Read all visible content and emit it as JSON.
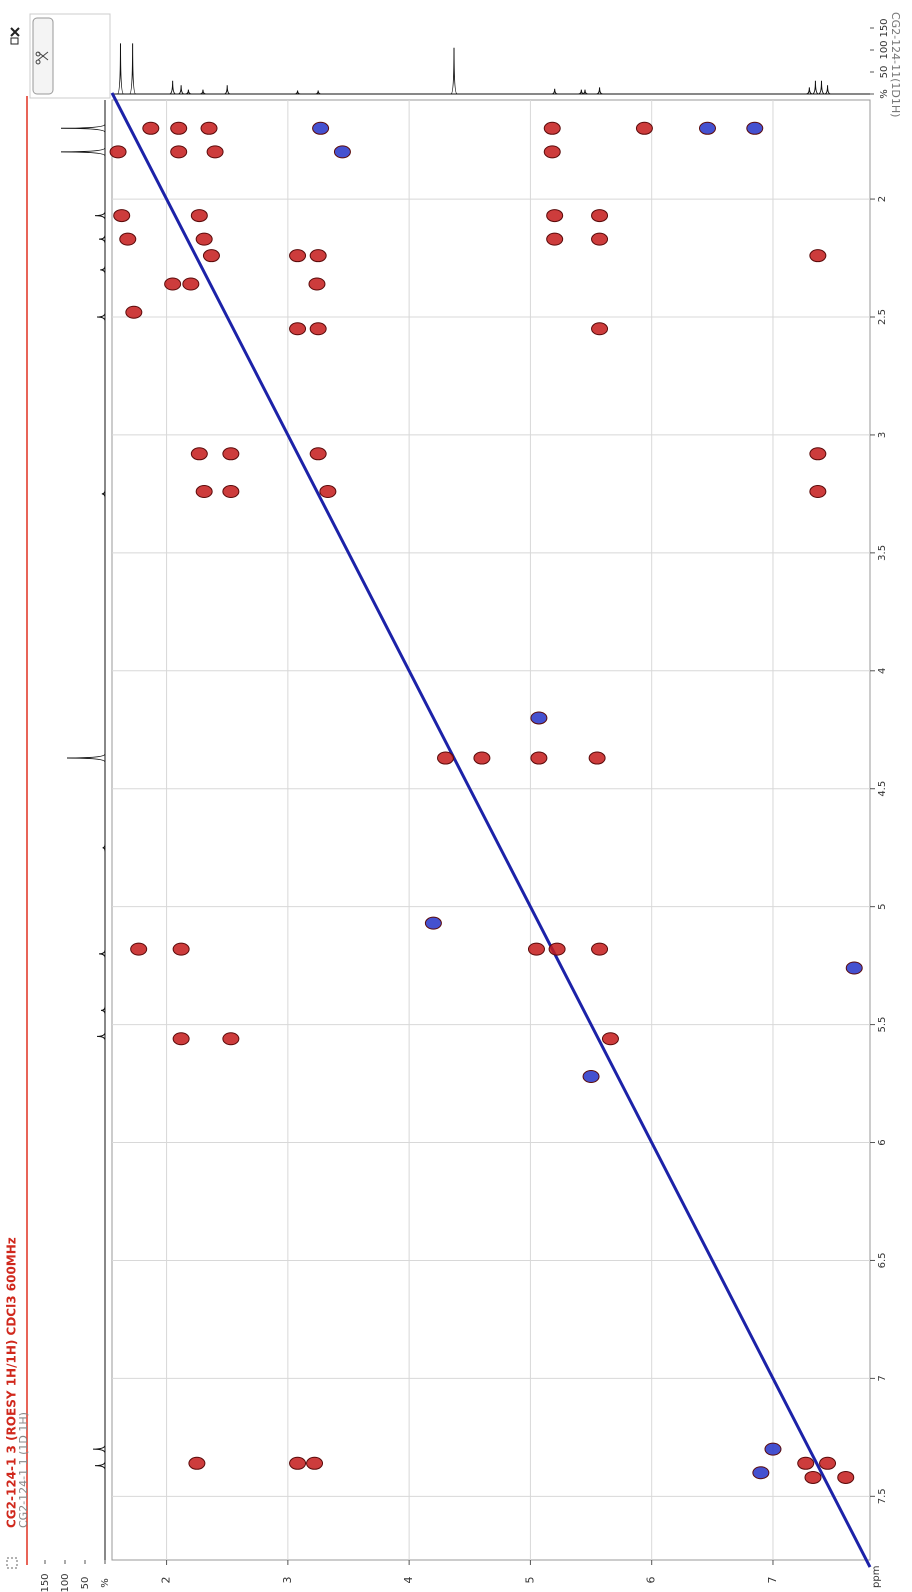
{
  "chart_data": {
    "type": "contour",
    "title": "CG2-124-1 3 (ROESY 1H/1H) CDCl3 600MHz",
    "subtitle": "CG2-124-1 1 (1D 1H)",
    "x_label": "ppm",
    "xlim": [
      1.55,
      7.8
    ],
    "ylim": [
      1.58,
      7.77
    ],
    "xticks": [
      2,
      3,
      4,
      5,
      6,
      7
    ],
    "yticks": [
      2,
      2.5,
      3,
      3.5,
      4,
      4.5,
      5,
      5.5,
      6,
      6.5,
      7,
      7.5
    ],
    "grid": true,
    "diagonal": {
      "color": "#1c22a8",
      "x": [
        1.55,
        7.8
      ],
      "y": [
        1.55,
        7.8
      ]
    },
    "series": [
      {
        "color": "#c41a1a",
        "x": [
          1.87,
          2.1,
          2.35,
          5.18,
          5.94,
          1.6,
          2.1,
          2.4,
          5.18,
          1.63,
          2.27,
          5.2,
          5.57,
          1.68,
          2.31,
          5.2,
          5.57,
          2.37,
          3.08,
          3.25,
          7.37,
          2.05,
          2.2,
          3.24,
          1.73,
          3.08,
          3.25,
          5.57,
          2.27,
          2.53,
          3.25,
          7.37,
          2.31,
          2.53,
          3.33,
          7.37,
          4.3,
          4.6,
          5.07,
          5.55,
          1.77,
          2.12,
          5.05,
          5.22,
          5.57,
          2.12,
          2.53,
          5.66,
          2.25,
          3.08,
          3.22,
          7.27,
          7.45,
          7.33,
          7.6
        ],
        "y": [
          1.7,
          1.7,
          1.7,
          1.7,
          1.7,
          1.8,
          1.8,
          1.8,
          1.8,
          2.07,
          2.07,
          2.07,
          2.07,
          2.17,
          2.17,
          2.17,
          2.17,
          2.24,
          2.24,
          2.24,
          2.24,
          2.36,
          2.36,
          2.36,
          2.48,
          2.55,
          2.55,
          2.55,
          3.08,
          3.08,
          3.08,
          3.08,
          3.24,
          3.24,
          3.24,
          3.24,
          4.37,
          4.37,
          4.37,
          4.37,
          5.18,
          5.18,
          5.18,
          5.18,
          5.18,
          5.56,
          5.56,
          5.56,
          7.36,
          7.36,
          7.36,
          7.36,
          7.36,
          7.42,
          7.42
        ]
      },
      {
        "color": "#2432c8",
        "x": [
          3.27,
          6.46,
          6.85,
          3.45,
          5.07,
          4.2,
          5.5,
          7.67,
          7.0,
          6.9
        ],
        "y": [
          1.7,
          1.7,
          1.7,
          1.8,
          4.2,
          5.07,
          5.72,
          5.26,
          7.3,
          7.4
        ]
      }
    ],
    "top_projection": {
      "label": "CG2-124-11(1D1H)",
      "ticks": [
        {
          "value": 0,
          "label": "%"
        },
        50,
        100,
        150
      ],
      "peaks": [
        1.62,
        1.72,
        2.05,
        2.12,
        2.18,
        2.3,
        2.5,
        3.08,
        3.25,
        4.37,
        5.2,
        5.42,
        5.45,
        5.57,
        7.3,
        7.35,
        7.4,
        7.45
      ],
      "heights": [
        115,
        115,
        30,
        20,
        10,
        10,
        20,
        8,
        8,
        105,
        12,
        10,
        10,
        15,
        15,
        30,
        30,
        20
      ]
    },
    "left_projection": {
      "ticks": [
        {
          "value": 0,
          "label": "%"
        },
        50,
        100,
        150
      ],
      "peaks": [
        1.7,
        1.8,
        2.07,
        2.17,
        2.3,
        2.5,
        3.25,
        4.37,
        4.75,
        5.2,
        5.44,
        5.55,
        7.3,
        7.37
      ],
      "heights": [
        110,
        110,
        25,
        15,
        12,
        20,
        8,
        95,
        6,
        15,
        10,
        20,
        30,
        25
      ]
    }
  }
}
